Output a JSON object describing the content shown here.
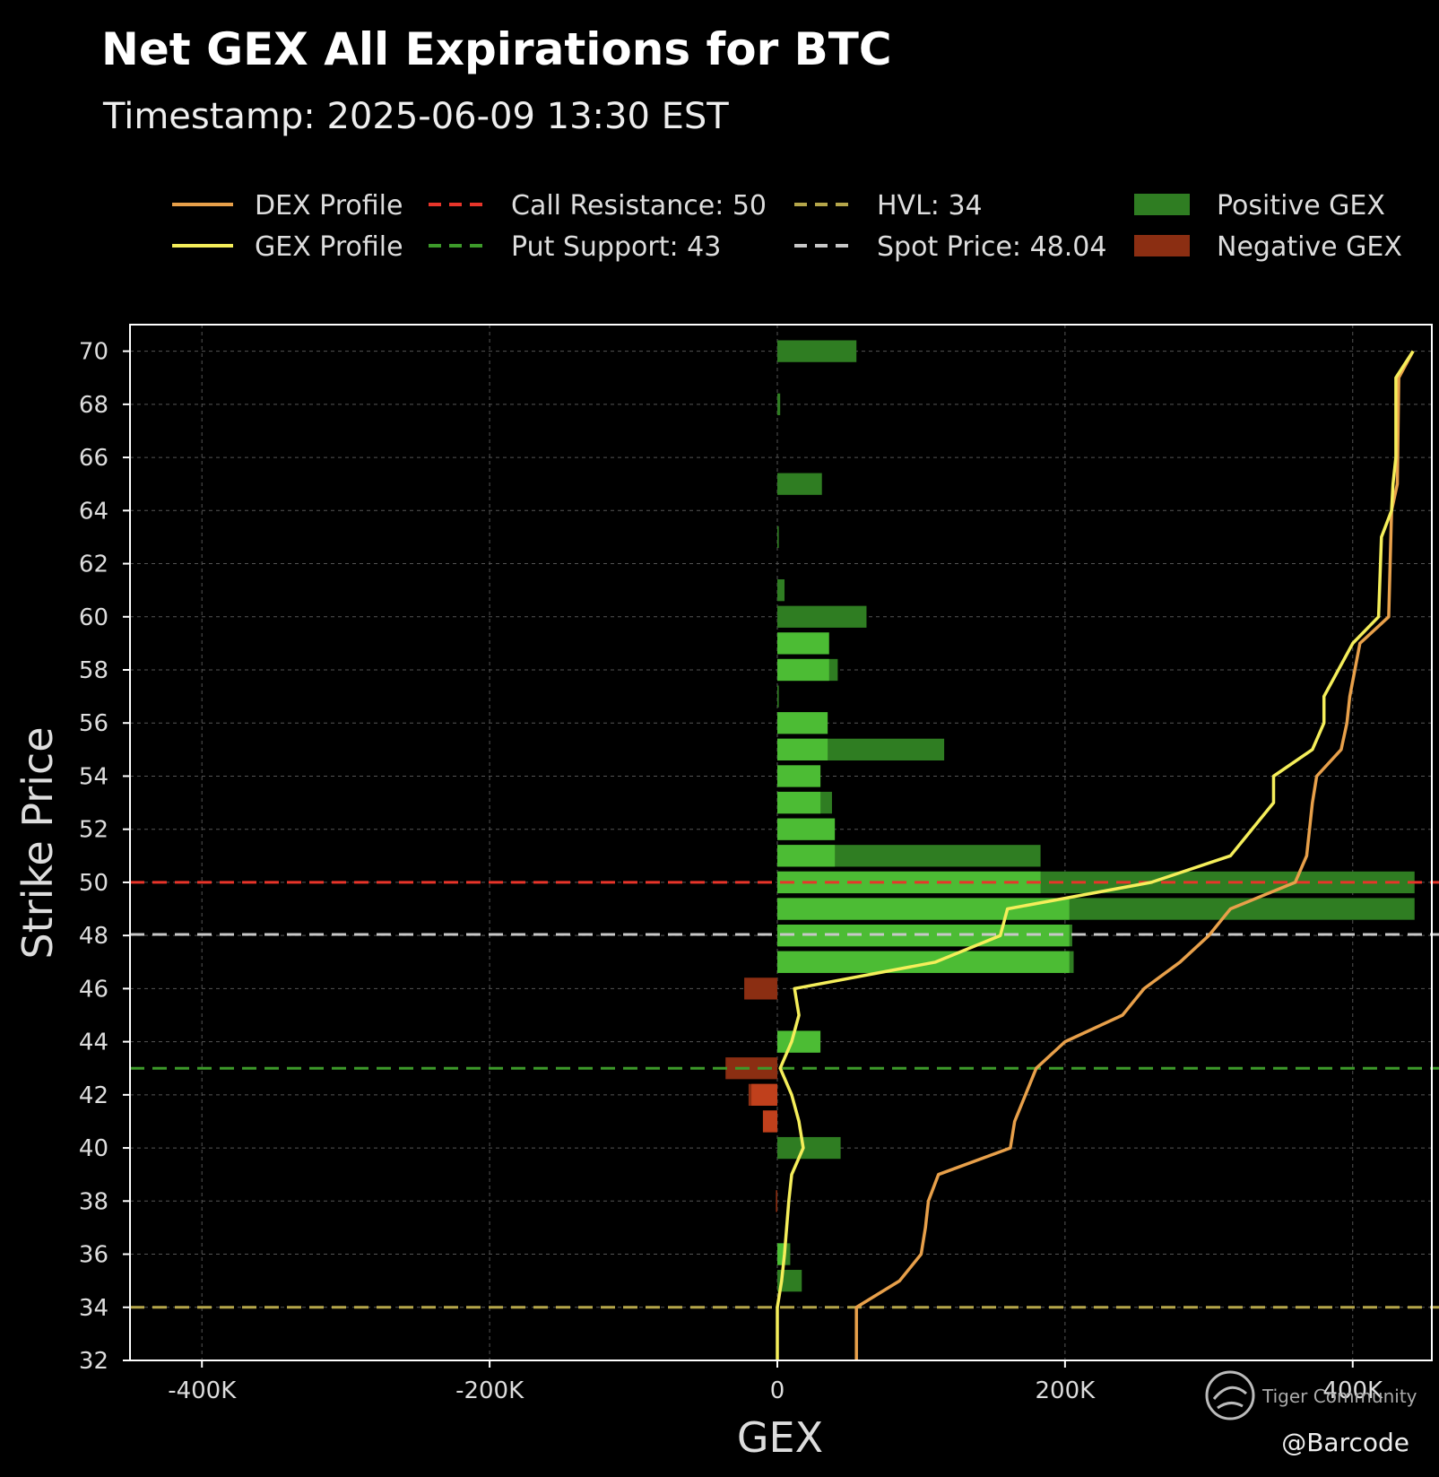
{
  "chart_data": {
    "type": "bar",
    "orientation": "horizontal",
    "title": "Net GEX All Expirations for BTC",
    "subtitle": "Timestamp: 2025-06-09 13:30 EST",
    "xlabel": "GEX",
    "ylabel": "Strike Price",
    "xlim": [
      -450000,
      455000
    ],
    "ylim": [
      32,
      71
    ],
    "xticks": [
      -400000,
      -200000,
      0,
      200000,
      400000
    ],
    "xtick_labels": [
      "-400K",
      "-200K",
      "0",
      "200K",
      "400K"
    ],
    "yticks": [
      32,
      34,
      36,
      38,
      40,
      42,
      44,
      46,
      48,
      50,
      52,
      54,
      56,
      58,
      60,
      62,
      64,
      66,
      68,
      70
    ],
    "grid": true,
    "legend_position": "top",
    "legend": [
      {
        "label": "DEX Profile",
        "kind": "line",
        "color": "#e8a04a"
      },
      {
        "label": "GEX Profile",
        "kind": "line",
        "color": "#f5ee5a"
      },
      {
        "label": "Call Resistance: 50",
        "kind": "dashed",
        "color": "#e8352a"
      },
      {
        "label": "Put Support: 43",
        "kind": "dashed",
        "color": "#3d9a2a"
      },
      {
        "label": "HVL: 34",
        "kind": "dashed",
        "color": "#b5a64a"
      },
      {
        "label": "Spot Price: 48.04",
        "kind": "dashed",
        "color": "#c8c8c8"
      },
      {
        "label": "Positive GEX",
        "kind": "patch",
        "color": "#2f7d22"
      },
      {
        "label": "Negative GEX",
        "kind": "patch",
        "color": "#8b2e12"
      }
    ],
    "levels": {
      "call_resistance": 50,
      "put_support": 43,
      "hvl": 34,
      "spot_price": 48.04
    },
    "level_colors": {
      "call_resistance": "#e8352a",
      "put_support": "#3d9a2a",
      "hvl": "#b5a64a",
      "spot_price": "#c8c8c8"
    },
    "bars_all": [
      {
        "strike": 70,
        "value": 55000
      },
      {
        "strike": 68,
        "value": 2000
      },
      {
        "strike": 65,
        "value": 31000
      },
      {
        "strike": 63,
        "value": 1000
      },
      {
        "strike": 61,
        "value": 5000
      },
      {
        "strike": 60,
        "value": 62000
      },
      {
        "strike": 58,
        "value": 42000
      },
      {
        "strike": 57,
        "value": 1000
      },
      {
        "strike": 55,
        "value": 116000
      },
      {
        "strike": 53,
        "value": 38000
      },
      {
        "strike": 51,
        "value": 183000
      },
      {
        "strike": 50,
        "value": 443000
      },
      {
        "strike": 49,
        "value": 443000
      },
      {
        "strike": 48,
        "value": 205000
      },
      {
        "strike": 47,
        "value": 206000
      },
      {
        "strike": 46,
        "value": -23000
      },
      {
        "strike": 44,
        "value": 29000
      },
      {
        "strike": 43,
        "value": -36000
      },
      {
        "strike": 42,
        "value": -20000
      },
      {
        "strike": 41,
        "value": -10000
      },
      {
        "strike": 40,
        "value": 44000
      },
      {
        "strike": 38,
        "value": -1000
      },
      {
        "strike": 36,
        "value": 9000
      },
      {
        "strike": 35,
        "value": 17000
      }
    ],
    "bars_weekly": [
      {
        "strike": 59,
        "value": 36000
      },
      {
        "strike": 58,
        "value": 36000
      },
      {
        "strike": 56,
        "value": 35000
      },
      {
        "strike": 55,
        "value": 35000
      },
      {
        "strike": 54,
        "value": 30000
      },
      {
        "strike": 53,
        "value": 30000
      },
      {
        "strike": 52,
        "value": 40000
      },
      {
        "strike": 51,
        "value": 40000
      },
      {
        "strike": 50,
        "value": 183000
      },
      {
        "strike": 49,
        "value": 203000
      },
      {
        "strike": 48,
        "value": 203000
      },
      {
        "strike": 47,
        "value": 203000
      },
      {
        "strike": 44,
        "value": 30000
      },
      {
        "strike": 42,
        "value": -18000
      },
      {
        "strike": 41,
        "value": -10000
      },
      {
        "strike": 36,
        "value": 5000
      }
    ],
    "series": [
      {
        "name": "DEX Profile",
        "color": "#e8a04a",
        "points": [
          [
            55000,
            32
          ],
          [
            55000,
            34
          ],
          [
            85000,
            35
          ],
          [
            100000,
            36
          ],
          [
            103000,
            37
          ],
          [
            105000,
            38
          ],
          [
            112000,
            39
          ],
          [
            162000,
            40
          ],
          [
            165000,
            41
          ],
          [
            180000,
            43
          ],
          [
            200000,
            44
          ],
          [
            240000,
            45
          ],
          [
            255000,
            46
          ],
          [
            280000,
            47
          ],
          [
            300000,
            48
          ],
          [
            315000,
            49
          ],
          [
            360000,
            50
          ],
          [
            368000,
            51
          ],
          [
            372000,
            53
          ],
          [
            375000,
            54
          ],
          [
            392000,
            55
          ],
          [
            396000,
            56
          ],
          [
            398000,
            57
          ],
          [
            405000,
            59
          ],
          [
            425000,
            60
          ],
          [
            427000,
            64
          ],
          [
            431000,
            65
          ],
          [
            432000,
            69
          ],
          [
            442000,
            70
          ]
        ]
      },
      {
        "name": "GEX Profile",
        "color": "#f5ee5a",
        "points": [
          [
            0,
            32
          ],
          [
            0,
            34
          ],
          [
            3000,
            35
          ],
          [
            5000,
            36
          ],
          [
            8000,
            38
          ],
          [
            10000,
            39
          ],
          [
            18000,
            40
          ],
          [
            15000,
            41
          ],
          [
            10000,
            42
          ],
          [
            2000,
            43
          ],
          [
            10000,
            44
          ],
          [
            15000,
            45
          ],
          [
            12000,
            46
          ],
          [
            110000,
            47
          ],
          [
            155000,
            48
          ],
          [
            160000,
            49
          ],
          [
            260000,
            50
          ],
          [
            315000,
            51
          ],
          [
            345000,
            53
          ],
          [
            345000,
            54
          ],
          [
            372000,
            55
          ],
          [
            380000,
            56
          ],
          [
            380000,
            57
          ],
          [
            400000,
            59
          ],
          [
            418000,
            60
          ],
          [
            420000,
            63
          ],
          [
            427000,
            64
          ],
          [
            428000,
            65
          ],
          [
            430000,
            66
          ],
          [
            430000,
            69
          ],
          [
            442000,
            70
          ]
        ]
      }
    ]
  },
  "watermark": {
    "text": "Tiger Community",
    "credit": "@Barcode"
  }
}
